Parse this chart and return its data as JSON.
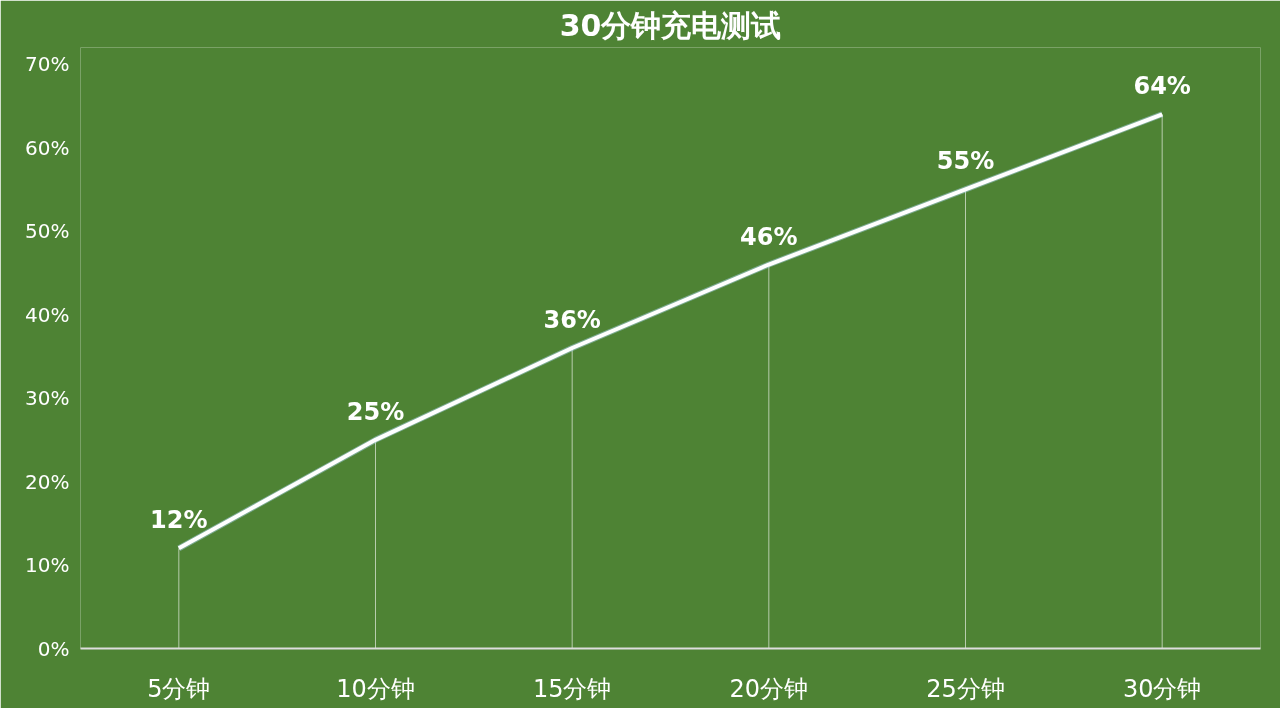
{
  "chart_data": {
    "type": "line",
    "title": "30分钟充电测试",
    "categories": [
      "5分钟",
      "10分钟",
      "15分钟",
      "20分钟",
      "25分钟",
      "30分钟"
    ],
    "series": [
      {
        "color": "#ffffff",
        "values": [
          12,
          25,
          36,
          46,
          55,
          64
        ],
        "value_labels": [
          "12%",
          "25%",
          "36%",
          "46%",
          "55%",
          "64%"
        ]
      }
    ],
    "ylim": [
      0,
      72
    ],
    "yticks": [
      {
        "value": 0,
        "label": "0%"
      },
      {
        "value": 10,
        "label": "10%"
      },
      {
        "value": 20,
        "label": "20%"
      },
      {
        "value": 30,
        "label": "30%"
      },
      {
        "value": 40,
        "label": "40%"
      },
      {
        "value": 50,
        "label": "50%"
      },
      {
        "value": 60,
        "label": "60%"
      },
      {
        "value": 70,
        "label": "70%"
      }
    ],
    "grid": "x",
    "marker": "none",
    "line_style": "solid"
  }
}
